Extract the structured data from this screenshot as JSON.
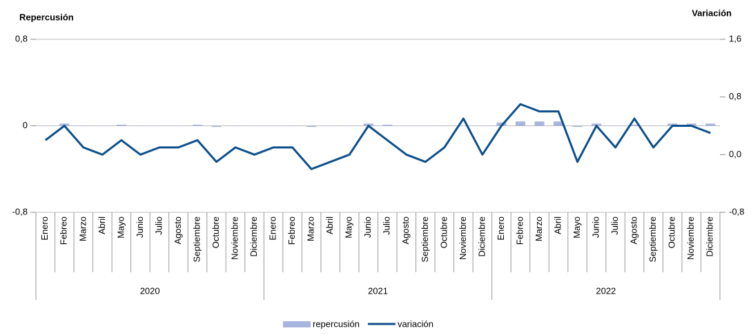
{
  "chart_data": {
    "type": "bar-line",
    "y_title": "Repercusión",
    "y2_title": "Variación",
    "categories": [
      "Enero",
      "Febreo",
      "Marzo",
      "Abril",
      "Mayo",
      "Junio",
      "Julio",
      "Agosto",
      "Septiembre",
      "Octubre",
      "Noviembre",
      "Diciembre",
      "Enero",
      "Febreo",
      "Marzo",
      "Abril",
      "Mayo",
      "Junio",
      "Julio",
      "Agosto",
      "Septiembre",
      "Octubre",
      "Noviembre",
      "Diciembre",
      "Enero",
      "Febreo",
      "Marzo",
      "Abril",
      "Mayo",
      "Junio",
      "Julio",
      "Agosto",
      "Septiembre",
      "Octubre",
      "Noviembre",
      "Diciembre"
    ],
    "groups": [
      "2020",
      "2021",
      "2022"
    ],
    "series": [
      {
        "name": "repercusión",
        "type": "bar",
        "color": "#a7b4de",
        "values": [
          0,
          0.02,
          0,
          0,
          0.01,
          0,
          0,
          0,
          0.01,
          -0.01,
          0,
          0,
          0,
          0,
          -0.01,
          0,
          0,
          0.02,
          0.01,
          0,
          0,
          0,
          0,
          0,
          0.03,
          0.04,
          0.04,
          0.04,
          -0.01,
          0.02,
          0,
          0.01,
          0,
          0.02,
          0.02,
          0.02
        ]
      },
      {
        "name": "variación",
        "type": "line",
        "axis": "y2",
        "color": "#0d4f8b",
        "values": [
          0.2,
          0.4,
          0.1,
          0,
          0.2,
          0,
          0.1,
          0.1,
          0.2,
          -0.1,
          0.1,
          0,
          0.1,
          0.1,
          -0.2,
          -0.1,
          0,
          0.4,
          0.2,
          0,
          -0.1,
          0.1,
          0.5,
          0,
          0.4,
          0.7,
          0.6,
          0.6,
          -0.1,
          0.4,
          0.1,
          0.5,
          0.1,
          0.4,
          0.4,
          0.3
        ]
      }
    ],
    "ylim": [
      -0.8,
      0.8
    ],
    "yticks": [
      {
        "value": -0.8,
        "label": "-0,8"
      },
      0,
      {
        "value": 0.8,
        "label": "0,8"
      }
    ],
    "y2lim": [
      -0.8,
      1.6
    ],
    "y2ticks": [
      {
        "value": -0.8,
        "label": "-0,8"
      },
      {
        "value": 0,
        "label": "0,0"
      },
      {
        "value": 0.8,
        "label": "0,8"
      },
      {
        "value": 1.6,
        "label": "1,6"
      }
    ],
    "grid": true
  }
}
